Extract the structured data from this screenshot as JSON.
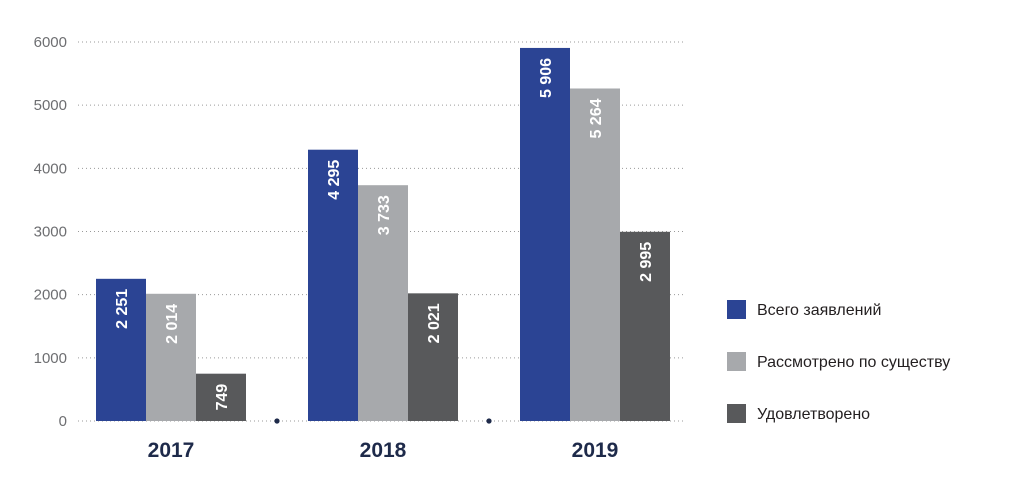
{
  "chart_data": {
    "type": "bar",
    "title": "",
    "xlabel": "",
    "ylabel": "",
    "categories": [
      "2017",
      "2018",
      "2019"
    ],
    "ylim": [
      0,
      6000
    ],
    "yticks": [
      0,
      1000,
      2000,
      3000,
      4000,
      5000,
      6000
    ],
    "grid": true,
    "legend_position": "right",
    "series": [
      {
        "name": "Всего заявлений",
        "color": "#2b4494",
        "values": [
          2251,
          4295,
          5906
        ],
        "labels": [
          "2 251",
          "4 295",
          "5 906"
        ]
      },
      {
        "name": "Рассмотрено по существу",
        "color": "#a7a9ac",
        "values": [
          2014,
          3733,
          5264
        ],
        "labels": [
          "2 014",
          "3 733",
          "5 264"
        ]
      },
      {
        "name": "Удовлетворено",
        "color": "#58595b",
        "values": [
          749,
          2021,
          2995
        ],
        "labels": [
          "749",
          "2 021",
          "2 995"
        ]
      }
    ],
    "separator_color": "#1e2a4a"
  }
}
